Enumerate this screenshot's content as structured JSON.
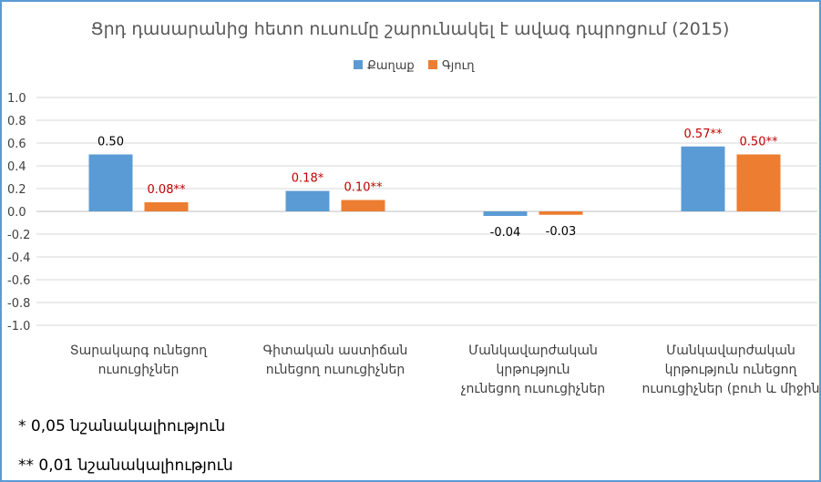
{
  "chart_data": {
    "type": "bar",
    "title": "Ցրդ դասարանից հետո ուսումը շարունակել է ավագ դպրոցում (2015)",
    "legend_position": "top",
    "categories": [
      [
        "Տարակարգ ունեցող",
        "ուսուցիչներ"
      ],
      [
        "Գիտական աստիճան",
        "ունեցող ուսուցիչներ"
      ],
      [
        "Մանկավարժական",
        "կրթություն",
        "չունեցող ուսուցիչներ"
      ],
      [
        "Մանկավարժական",
        "կրթություն ունեցող",
        "ուսուցիչներ (բուհ և միջին"
      ]
    ],
    "series": [
      {
        "name": "Քաղաք",
        "color": "#5b9bd5",
        "values": [
          0.5,
          0.18,
          -0.04,
          0.57
        ],
        "labels": [
          "0.50",
          "0.18*",
          "-0.04",
          "0.57**"
        ]
      },
      {
        "name": "Գյուղ",
        "color": "#ed7d31",
        "values": [
          0.08,
          0.1,
          -0.03,
          0.5
        ],
        "labels": [
          "0.08**",
          "0.10**",
          "-0.03",
          "0.50**"
        ]
      }
    ],
    "ylim": [
      -1.0,
      1.0
    ],
    "yticks": [
      "1.0",
      "0.8",
      "0.6",
      "0.4",
      "0.2",
      "0.0",
      "-0.2",
      "-0.4",
      "-0.6",
      "-0.8",
      "-1.0"
    ],
    "ytick_values": [
      1.0,
      0.8,
      0.6,
      0.4,
      0.2,
      0.0,
      -0.2,
      -0.4,
      -0.6,
      -0.8,
      -1.0
    ],
    "grid": true,
    "significant_label_color": "#c00000",
    "plain_label_color": "#000000"
  },
  "footnotes": [
    "* 0,05 նշանակալիություն",
    "** 0,01 նշանակալիություն"
  ]
}
